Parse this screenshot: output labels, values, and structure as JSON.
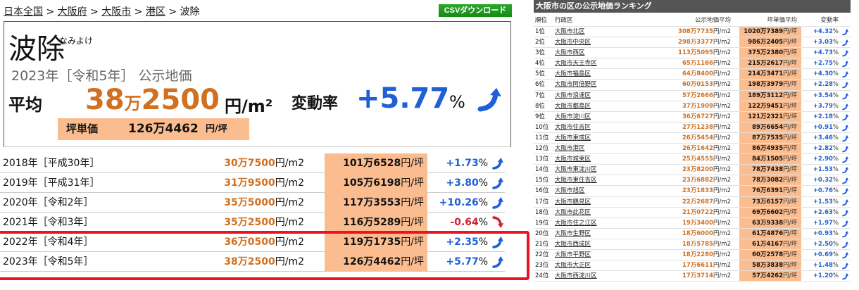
{
  "breadcrumb": [
    "日本全国",
    "大阪府",
    "大阪市",
    "港区",
    "波除"
  ],
  "breadcrumb_sep": ">",
  "csv_label": "CSVダウンロード",
  "summary": {
    "name": "波除",
    "kana": "なみよけ",
    "year": "2023年［令和5年］ 公示地価",
    "avg_label": "平均",
    "avg_man": "38",
    "avg_rest": "2500",
    "man": "万",
    "avg_unit": "円/m²",
    "change_label": "変動率",
    "change": "+5.77",
    "percent": "%",
    "tsubo_label": "坪単価",
    "tsubo_value": "126万4462",
    "tsubo_unit": "円/坪"
  },
  "history": [
    {
      "year": "2018年［平成30年］",
      "m2": "30万7500",
      "tsubo": "101万6528",
      "change": "+1.73",
      "trend": "up"
    },
    {
      "year": "2019年［平成31年］",
      "m2": "31万9500",
      "tsubo": "105万6198",
      "change": "+3.80",
      "trend": "up"
    },
    {
      "year": "2020年［令和2年］",
      "m2": "35万5000",
      "tsubo": "117万3553",
      "change": "+10.26",
      "trend": "up"
    },
    {
      "year": "2021年［令和3年］",
      "m2": "35万2500",
      "tsubo": "116万5289",
      "change": "-0.64",
      "trend": "down"
    },
    {
      "year": "2022年［令和4年］",
      "m2": "36万0500",
      "tsubo": "119万1735",
      "change": "+2.35",
      "trend": "up"
    },
    {
      "year": "2023年［令和5年］",
      "m2": "38万2500",
      "tsubo": "126万4462",
      "change": "+5.77",
      "trend": "up"
    }
  ],
  "units": {
    "m2": "円/m2",
    "tsubo": "円/坪",
    "pct": "%"
  },
  "colors": {
    "orange": "#d07020",
    "blue": "#1f5fd8",
    "red": "#d0203a",
    "peach": "#fbbd8f",
    "highlight": "#ee1122"
  },
  "ranking": {
    "title": "大阪市の区の公示地価ランキング",
    "headers": {
      "rank": "順位",
      "ward": "行政区",
      "m2": "公示地価平均",
      "tsubo": "坪単価平均",
      "change": "変動率"
    },
    "rows": [
      {
        "rank": "1位",
        "ward": "大阪市北区",
        "m2": "308万7735",
        "tsubo": "1020万7389",
        "change": "+4.32"
      },
      {
        "rank": "2位",
        "ward": "大阪市中央区",
        "m2": "298万3377",
        "tsubo": "986万2405",
        "change": "+3.03"
      },
      {
        "rank": "3位",
        "ward": "大阪市西区",
        "m2": "113万5095",
        "tsubo": "375万2380",
        "change": "+4.73"
      },
      {
        "rank": "4位",
        "ward": "大阪市天王寺区",
        "m2": "65万1166",
        "tsubo": "215万2617",
        "change": "+2.75"
      },
      {
        "rank": "5位",
        "ward": "大阪市福島区",
        "m2": "64万8400",
        "tsubo": "214万3471",
        "change": "+4.30"
      },
      {
        "rank": "6位",
        "ward": "大阪市阿倍野区",
        "m2": "60万0153",
        "tsubo": "198万3979",
        "change": "+2.28"
      },
      {
        "rank": "7位",
        "ward": "大阪市浪速区",
        "m2": "57万2666",
        "tsubo": "189万3112",
        "change": "+3.54"
      },
      {
        "rank": "8位",
        "ward": "大阪市都島区",
        "m2": "37万1909",
        "tsubo": "122万9451",
        "change": "+3.79"
      },
      {
        "rank": "9位",
        "ward": "大阪市淀川区",
        "m2": "36万6727",
        "tsubo": "121万2321",
        "change": "+2.18"
      },
      {
        "rank": "10位",
        "ward": "大阪市住吉区",
        "m2": "27万1238",
        "tsubo": "89万6654",
        "change": "+0.91"
      },
      {
        "rank": "11位",
        "ward": "大阪市東成区",
        "m2": "26万5454",
        "tsubo": "87万7535",
        "change": "+3.46"
      },
      {
        "rank": "12位",
        "ward": "大阪市港区",
        "m2": "26万1642",
        "tsubo": "86万4935",
        "change": "+2.82"
      },
      {
        "rank": "13位",
        "ward": "大阪市城東区",
        "m2": "25万4555",
        "tsubo": "84万1505",
        "change": "+2.90"
      },
      {
        "rank": "14位",
        "ward": "大阪市東淀川区",
        "m2": "23万8200",
        "tsubo": "78万7438",
        "change": "+1.53"
      },
      {
        "rank": "15位",
        "ward": "大阪市東住吉区",
        "m2": "23万6882",
        "tsubo": "78万3082",
        "change": "+0.32"
      },
      {
        "rank": "16位",
        "ward": "大阪市旭区",
        "m2": "23万1833",
        "tsubo": "76万6391",
        "change": "+0.76"
      },
      {
        "rank": "17位",
        "ward": "大阪市鶴見区",
        "m2": "22万2687",
        "tsubo": "73万6157",
        "change": "+1.53"
      },
      {
        "rank": "18位",
        "ward": "大阪市此花区",
        "m2": "21万0722",
        "tsubo": "69万6602",
        "change": "+2.63"
      },
      {
        "rank": "19位",
        "ward": "大阪市住之江区",
        "m2": "19万3400",
        "tsubo": "63万9338",
        "change": "+1.97"
      },
      {
        "rank": "20位",
        "ward": "大阪市生野区",
        "m2": "18万6000",
        "tsubo": "61万4876",
        "change": "+0.93"
      },
      {
        "rank": "21位",
        "ward": "大阪市西成区",
        "m2": "18万5785",
        "tsubo": "61万4167",
        "change": "+2.50"
      },
      {
        "rank": "22位",
        "ward": "大阪市平野区",
        "m2": "18万2280",
        "tsubo": "60万2578",
        "change": "+0.69"
      },
      {
        "rank": "23位",
        "ward": "大阪市大正区",
        "m2": "17万6611",
        "tsubo": "58万3838",
        "change": "+1.48"
      },
      {
        "rank": "24位",
        "ward": "大阪市西淀川区",
        "m2": "17万3714",
        "tsubo": "57万4262",
        "change": "+1.20"
      }
    ]
  }
}
